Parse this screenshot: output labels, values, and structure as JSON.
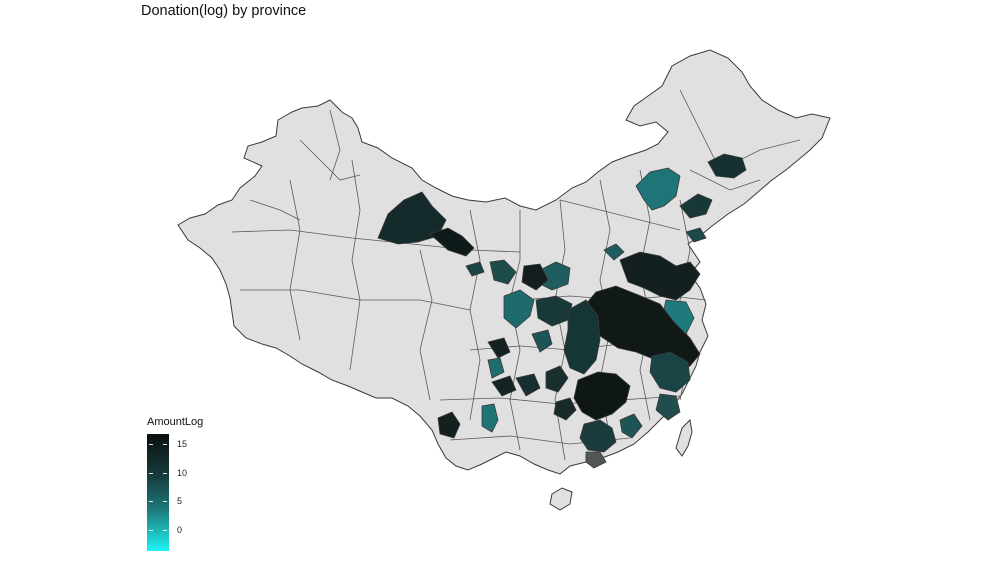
{
  "title": "Donation(log) by province",
  "legend": {
    "title": "AmountLog",
    "ticks": [
      {
        "value": 15,
        "label": "15"
      },
      {
        "value": 10,
        "label": "10"
      },
      {
        "value": 5,
        "label": "5"
      },
      {
        "value": 0,
        "label": "0"
      }
    ],
    "range": [
      -3.7,
      16.8
    ],
    "color_low": "#1ef5f5",
    "color_mid": "#1e7a7c",
    "color_high": "#0b0f0f"
  },
  "map": {
    "region": "China",
    "base_color": "#e0e0e0",
    "border_color": "#333333",
    "missing_color": "#e0e0e0"
  }
}
